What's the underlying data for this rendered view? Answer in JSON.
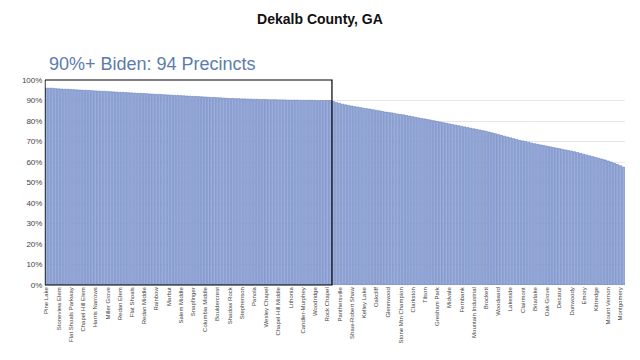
{
  "chart_data": {
    "type": "bar",
    "title": "Dekalb County, GA",
    "highlight": {
      "text": "90%+ Biden: 94 Precincts",
      "count": 94
    },
    "categories": [
      "Pine Lake",
      null,
      null,
      null,
      "Stoneview Elem",
      null,
      null,
      null,
      "Flat Shoals Parkway",
      null,
      null,
      null,
      "Chapel Hill Elem",
      null,
      null,
      null,
      "Harris Narrows",
      null,
      null,
      null,
      "Miller Grove",
      null,
      null,
      null,
      "Redan Elem",
      null,
      null,
      null,
      "Flat Shoals",
      null,
      null,
      null,
      "Redan Middle",
      null,
      null,
      null,
      "Rainbow",
      null,
      null,
      null,
      "Marbut",
      null,
      null,
      null,
      "Salem Middle",
      null,
      null,
      null,
      "Snapfinger",
      null,
      null,
      null,
      "Columbia Middle",
      null,
      null,
      null,
      "Bouldercrest",
      null,
      null,
      null,
      "Shadow Rock",
      null,
      null,
      null,
      "Stephenson",
      null,
      null,
      null,
      "Panola",
      null,
      null,
      null,
      "Wesley Chapel",
      null,
      null,
      null,
      "Chapel Hill Middle",
      null,
      null,
      null,
      "Lithonia",
      null,
      null,
      null,
      "Candler-Murphey",
      null,
      null,
      null,
      "Woodridge",
      null,
      null,
      null,
      "Rock Chapel",
      null,
      null,
      null,
      "Panthersville",
      null,
      null,
      null,
      "Shaw-Robert Shaw",
      null,
      null,
      null,
      "Kelley Lake",
      null,
      null,
      null,
      "Oakcliff",
      null,
      null,
      null,
      "Glennwood",
      null,
      null,
      null,
      "Stone Mtn Champion",
      null,
      null,
      null,
      "Clarkston",
      null,
      null,
      null,
      "Tilson",
      null,
      null,
      null,
      "Gresham Park",
      null,
      null,
      null,
      "Midvale",
      null,
      null,
      null,
      "Fernbank",
      null,
      null,
      null,
      "Mountain Industrial",
      null,
      null,
      null,
      "Brockett",
      null,
      null,
      null,
      "Woodward",
      null,
      null,
      null,
      "Lakeside",
      null,
      null,
      null,
      "Clairmont",
      null,
      null,
      null,
      "Briarlake",
      null,
      null,
      null,
      "Oak Grove",
      null,
      null,
      null,
      "Decatur",
      null,
      null,
      null,
      "Dunwoody",
      null,
      null,
      null,
      "Emory",
      null,
      null,
      null,
      "Kittredge",
      null,
      null,
      null,
      "Mount Vernon",
      null,
      null,
      null,
      "Montgomery",
      null
    ],
    "values": [
      96,
      96,
      96,
      95.8,
      95.7,
      95.6,
      95.5,
      95.5,
      95.4,
      95.3,
      95.2,
      95.1,
      95,
      95,
      94.9,
      94.8,
      94.7,
      94.6,
      94.5,
      94.5,
      94.4,
      94.3,
      94.2,
      94.1,
      94,
      94,
      93.9,
      93.8,
      93.7,
      93.6,
      93.5,
      93.5,
      93.4,
      93.3,
      93.2,
      93.1,
      93,
      93,
      92.9,
      92.8,
      92.7,
      92.6,
      92.5,
      92.5,
      92.4,
      92.3,
      92.2,
      92.1,
      92,
      92,
      91.9,
      91.8,
      91.7,
      91.6,
      91.5,
      91.5,
      91.4,
      91.3,
      91.2,
      91.1,
      91,
      91,
      90.9,
      90.9,
      90.8,
      90.8,
      90.7,
      90.7,
      90.6,
      90.6,
      90.5,
      90.5,
      90.5,
      90.4,
      90.4,
      90.4,
      90.3,
      90.3,
      90.3,
      90.2,
      90.2,
      90.2,
      90.2,
      90.1,
      90.1,
      90.1,
      90.1,
      90.1,
      90,
      90,
      90,
      90,
      90,
      90,
      89.5,
      89,
      88.6,
      88.2,
      87.9,
      87.6,
      87.3,
      87,
      86.8,
      86.5,
      86.2,
      86,
      85.8,
      85.5,
      85.2,
      85,
      84.7,
      84.4,
      84.2,
      84,
      83.7,
      83.4,
      83.2,
      83,
      82.7,
      82.4,
      82.1,
      81.8,
      81.5,
      81.2,
      81,
      80.7,
      80.4,
      80.1,
      79.8,
      79.5,
      79.2,
      78.9,
      78.6,
      78.3,
      78,
      77.7,
      77.4,
      77.1,
      76.8,
      76.5,
      76.2,
      75.9,
      75.6,
      75.3,
      75,
      74.6,
      74.2,
      73.8,
      73.4,
      73,
      72.6,
      72.2,
      71.8,
      71.4,
      71,
      70.6,
      70.3,
      70,
      69.6,
      69.2,
      68.9,
      68.6,
      68.3,
      68,
      67.7,
      67.4,
      67.1,
      66.8,
      66.5,
      66.2,
      65.9,
      65.6,
      65.3,
      65,
      64.6,
      64.2,
      63.8,
      63.4,
      63,
      62.6,
      62.2,
      61.8,
      61.4,
      61,
      60.5,
      60,
      59.4,
      58.8,
      58.2,
      57.5
    ],
    "color": "#9aaedc",
    "ylim": [
      0,
      100
    ],
    "yticks": [
      {
        "value": 0,
        "label": "0%"
      },
      {
        "value": 10,
        "label": "10%"
      },
      {
        "value": 20,
        "label": "20%"
      },
      {
        "value": 30,
        "label": "30%"
      },
      {
        "value": 40,
        "label": "40%"
      },
      {
        "value": 50,
        "label": "50%"
      },
      {
        "value": 60,
        "label": "60%"
      },
      {
        "value": 70,
        "label": "70%"
      },
      {
        "value": 80,
        "label": "80%"
      },
      {
        "value": 90,
        "label": "90%"
      },
      {
        "value": 100,
        "label": "100%"
      }
    ],
    "grid": true
  }
}
